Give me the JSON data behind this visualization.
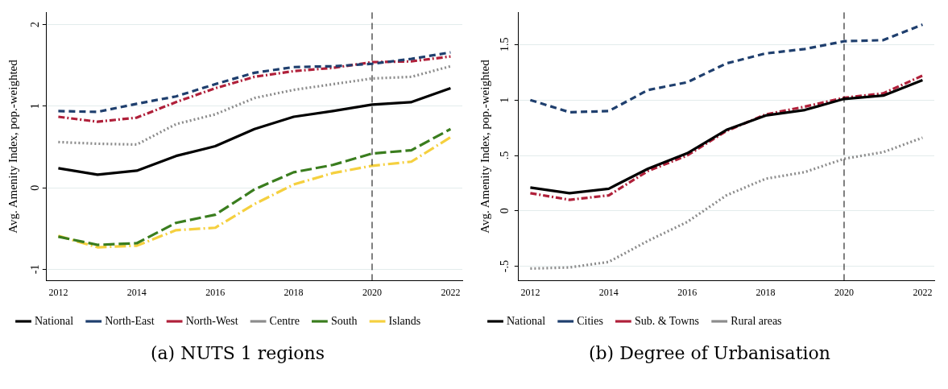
{
  "chart_data": [
    {
      "type": "line",
      "title": "(a) NUTS 1 regions",
      "ylabel": "Avg. Amenity Index, pop.-weighted",
      "x": [
        2012,
        2013,
        2014,
        2015,
        2016,
        2017,
        2018,
        2019,
        2020,
        2021,
        2022
      ],
      "xlim": [
        2011.7,
        2022.3
      ],
      "xticks": [
        2012,
        2014,
        2016,
        2018,
        2020,
        2022
      ],
      "ylim": [
        -1.14,
        2.15
      ],
      "yticks": [
        -1,
        0,
        1,
        2
      ],
      "grid": "y",
      "legend": "bottom",
      "marker": "none",
      "ref_lines": [
        {
          "axis": "x",
          "value": 2020,
          "color": "#000000",
          "line_style": "dashed"
        }
      ],
      "series": [
        {
          "name": "National",
          "color": "#000000",
          "line_style": "solid",
          "values": [
            0.24,
            0.16,
            0.21,
            0.39,
            0.51,
            0.72,
            0.87,
            0.94,
            1.02,
            1.05,
            1.22
          ]
        },
        {
          "name": "North-East",
          "color": "#1f3f6e",
          "line_style": "dashed",
          "values": [
            0.94,
            0.93,
            1.03,
            1.12,
            1.27,
            1.41,
            1.48,
            1.49,
            1.52,
            1.58,
            1.66
          ]
        },
        {
          "name": "North-West",
          "color": "#b0203a",
          "line_style": "dashdot",
          "values": [
            0.87,
            0.81,
            0.86,
            1.05,
            1.22,
            1.36,
            1.43,
            1.47,
            1.54,
            1.55,
            1.61
          ]
        },
        {
          "name": "Centre",
          "color": "#8c8c8c",
          "line_style": "dotted",
          "values": [
            0.56,
            0.54,
            0.53,
            0.78,
            0.9,
            1.1,
            1.2,
            1.27,
            1.34,
            1.36,
            1.49
          ]
        },
        {
          "name": "South",
          "color": "#3a7d1e",
          "line_style": "longdash",
          "values": [
            -0.6,
            -0.7,
            -0.68,
            -0.43,
            -0.33,
            -0.02,
            0.19,
            0.28,
            0.42,
            0.46,
            0.72
          ]
        },
        {
          "name": "Islands",
          "color": "#f5d03f",
          "line_style": "longdashdot",
          "values": [
            -0.59,
            -0.73,
            -0.71,
            -0.52,
            -0.49,
            -0.2,
            0.04,
            0.18,
            0.27,
            0.32,
            0.62
          ]
        }
      ]
    },
    {
      "type": "line",
      "title": "(b) Degree of Urbanisation",
      "ylabel": "Avg. Amenity Index, pop.-weighted",
      "x": [
        2012,
        2013,
        2014,
        2015,
        2016,
        2017,
        2018,
        2019,
        2020,
        2021,
        2022
      ],
      "xlim": [
        2011.7,
        2022.3
      ],
      "xticks": [
        2012,
        2014,
        2016,
        2018,
        2020,
        2022
      ],
      "ylim": [
        -0.63,
        1.79
      ],
      "yticks": [
        {
          "value": -0.5,
          "label": "-.5"
        },
        0,
        {
          "value": 0.5,
          "label": ".5"
        },
        1,
        1.5
      ],
      "grid": "y",
      "legend": "bottom",
      "marker": "none",
      "ref_lines": [
        {
          "axis": "x",
          "value": 2020,
          "color": "#000000",
          "line_style": "dashed"
        }
      ],
      "series": [
        {
          "name": "National",
          "color": "#000000",
          "line_style": "solid",
          "values": [
            0.21,
            0.16,
            0.2,
            0.38,
            0.52,
            0.73,
            0.86,
            0.91,
            1.01,
            1.04,
            1.18
          ]
        },
        {
          "name": "Cities",
          "color": "#1f3f6e",
          "line_style": "dashed",
          "values": [
            1.0,
            0.89,
            0.9,
            1.09,
            1.16,
            1.33,
            1.42,
            1.46,
            1.53,
            1.54,
            1.68
          ]
        },
        {
          "name": "Sub. & Towns",
          "color": "#b0203a",
          "line_style": "dashdot",
          "values": [
            0.16,
            0.1,
            0.14,
            0.36,
            0.5,
            0.72,
            0.87,
            0.94,
            1.02,
            1.06,
            1.22
          ]
        },
        {
          "name": "Rural areas",
          "color": "#8c8c8c",
          "line_style": "dotted",
          "values": [
            -0.52,
            -0.51,
            -0.46,
            -0.27,
            -0.1,
            0.14,
            0.29,
            0.35,
            0.47,
            0.53,
            0.66
          ]
        }
      ]
    }
  ]
}
